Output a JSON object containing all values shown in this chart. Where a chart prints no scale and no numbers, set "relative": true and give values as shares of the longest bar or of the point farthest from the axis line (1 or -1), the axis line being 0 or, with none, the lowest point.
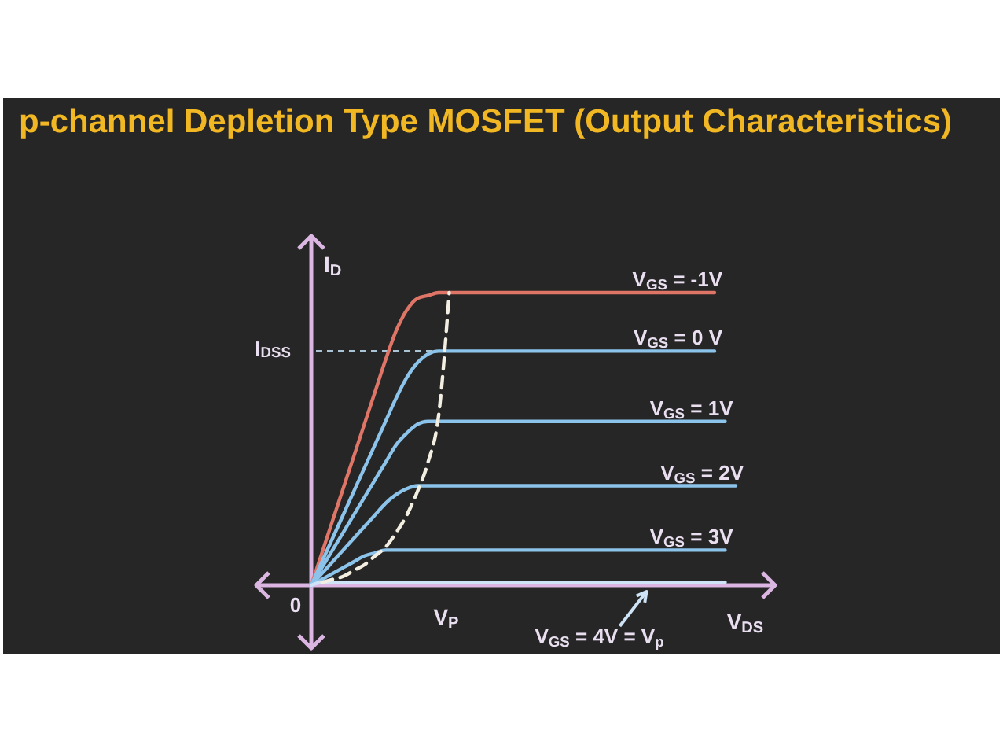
{
  "chart_data": {
    "type": "line",
    "title": "p-channel Depletion Type MOSFET (Output Characteristics)",
    "xlabel": "V$_{DS}$",
    "ylabel": "I$_{D}$",
    "relative": true,
    "categories": [
      null,
      null,
      null,
      null,
      null,
      null,
      null,
      null,
      null,
      null,
      null,
      null,
      null,
      null,
      null,
      null,
      null,
      null,
      null,
      null,
      null,
      null,
      null,
      null,
      null,
      null,
      null,
      null,
      null,
      null,
      null,
      null,
      null,
      null,
      null,
      null,
      null,
      null,
      null,
      null,
      null
    ],
    "series": [
      {
        "name": "V$_{GS}$ = -1V",
        "color": "#df7566",
        "values": [
          0,
          0.11,
          0.22,
          0.33,
          0.44,
          0.55,
          0.66,
          0.77,
          0.87,
          0.94,
          0.98,
          0.99,
          1,
          1,
          1,
          1,
          1,
          1,
          1,
          1,
          1,
          1,
          1,
          1,
          1,
          1,
          1,
          1,
          1,
          1,
          1,
          1,
          1,
          1,
          1,
          1,
          1,
          1,
          1,
          null,
          null
        ]
      },
      {
        "name": "V$_{GS}$ = 0 V",
        "color": "#8cc3ea",
        "values": [
          0,
          0.08,
          0.16,
          0.24,
          0.32,
          0.4,
          0.48,
          0.56,
          0.64,
          0.71,
          0.76,
          0.79,
          0.8,
          0.8,
          0.8,
          0.8,
          0.8,
          0.8,
          0.8,
          0.8,
          0.8,
          0.8,
          0.8,
          0.8,
          0.8,
          0.8,
          0.8,
          0.8,
          0.8,
          0.8,
          0.8,
          0.8,
          0.8,
          0.8,
          0.8,
          0.8,
          0.8,
          0.8,
          0.8,
          null,
          null
        ]
      },
      {
        "name": "V$_{GS}$ = 1V",
        "color": "#8cc3ea",
        "values": [
          0,
          0.06,
          0.12,
          0.18,
          0.24,
          0.3,
          0.36,
          0.42,
          0.48,
          0.52,
          0.55,
          0.56,
          0.56,
          0.56,
          0.56,
          0.56,
          0.56,
          0.56,
          0.56,
          0.56,
          0.56,
          0.56,
          0.56,
          0.56,
          0.56,
          0.56,
          0.56,
          0.56,
          0.56,
          0.56,
          0.56,
          0.56,
          0.56,
          0.56,
          0.56,
          0.56,
          0.56,
          0.56,
          0.56,
          0.56,
          null
        ]
      },
      {
        "name": "V$_{GS}$ = 2V",
        "color": "#8cc3ea",
        "values": [
          0,
          0.04,
          0.08,
          0.12,
          0.16,
          0.2,
          0.24,
          0.28,
          0.31,
          0.33,
          0.34,
          0.34,
          0.34,
          0.34,
          0.34,
          0.34,
          0.34,
          0.34,
          0.34,
          0.34,
          0.34,
          0.34,
          0.34,
          0.34,
          0.34,
          0.34,
          0.34,
          0.34,
          0.34,
          0.34,
          0.34,
          0.34,
          0.34,
          0.34,
          0.34,
          0.34,
          0.34,
          0.34,
          0.34,
          0.34,
          0.34
        ]
      },
      {
        "name": "V$_{GS}$ = 3V",
        "color": "#8cc3ea",
        "values": [
          0,
          0.02,
          0.04,
          0.06,
          0.08,
          0.1,
          0.11,
          0.12,
          0.12,
          0.12,
          0.12,
          0.12,
          0.12,
          0.12,
          0.12,
          0.12,
          0.12,
          0.12,
          0.12,
          0.12,
          0.12,
          0.12,
          0.12,
          0.12,
          0.12,
          0.12,
          0.12,
          0.12,
          0.12,
          0.12,
          0.12,
          0.12,
          0.12,
          0.12,
          0.12,
          0.12,
          0.12,
          0.12,
          0.12,
          0.12,
          null
        ]
      },
      {
        "name": "V$_{GS}$ = 4V = V$_{p}$",
        "color": "#cfe3f7",
        "values": [
          0,
          0.01,
          0.01,
          0.01,
          0.01,
          0.01,
          0.01,
          0.01,
          0.01,
          0.01,
          0.01,
          0.01,
          0.01,
          0.01,
          0.01,
          0.01,
          0.01,
          0.01,
          0.01,
          0.01,
          0.01,
          0.01,
          0.01,
          0.01,
          0.01,
          0.01,
          0.01,
          0.01,
          0.01,
          0.01,
          0.01,
          0.01,
          0.01,
          0.01,
          0.01,
          0.01,
          0.01,
          0.01,
          0.01,
          0.01,
          null
        ]
      },
      {
        "color": "#f3eee2",
        "line_style": "dashed",
        "values": [
          null,
          0.01,
          0.02,
          0.03,
          0.05,
          0.07,
          0.1,
          0.13,
          0.18,
          0.24,
          0.32,
          0.42,
          0.58,
          1,
          null,
          null,
          null,
          null,
          null,
          null,
          null,
          null,
          null,
          null,
          null,
          null,
          null,
          null,
          null,
          null,
          null,
          null,
          null,
          null,
          null,
          null,
          null,
          null,
          null,
          null,
          null
        ]
      }
    ],
    "ref_lines": [
      {
        "axis": "y",
        "value": 0.8,
        "label": "I$_{DSS}$",
        "line_style": "dashed",
        "color": "#a9c4d4"
      }
    ],
    "annotations": [
      "0",
      "V$_{P}$"
    ]
  }
}
